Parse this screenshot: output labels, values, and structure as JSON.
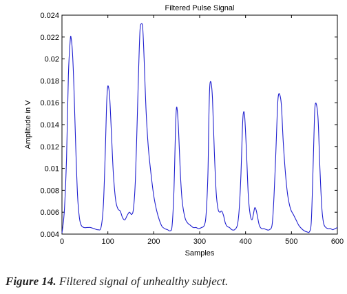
{
  "chart_data": {
    "type": "line",
    "title": "Filtered Pulse Signal",
    "xlabel": "Samples",
    "ylabel": "Amplitude in V",
    "xlim": [
      0,
      600
    ],
    "ylim": [
      0.004,
      0.024
    ],
    "xticks": [
      "0",
      "100",
      "200",
      "300",
      "400",
      "500",
      "600"
    ],
    "yticks": [
      "0.004",
      "0.006",
      "0.008",
      "0.01",
      "0.012",
      "0.014",
      "0.016",
      "0.018",
      "0.02",
      "0.022",
      "0.024"
    ],
    "grid": false,
    "line_color": "#1f1fcf",
    "series": [
      {
        "x": [
          0,
          5,
          10,
          14,
          18,
          20,
          23,
          26,
          30,
          34,
          38,
          42,
          48,
          55,
          62,
          70,
          78,
          85,
          90,
          94,
          97,
          99,
          101,
          104,
          108,
          112,
          117,
          122,
          127,
          132,
          137,
          142,
          147,
          152,
          156,
          160,
          164,
          167,
          170,
          173,
          176,
          179,
          183,
          188,
          194,
          200,
          206,
          212,
          218,
          224,
          230,
          236,
          240,
          244,
          247,
          249,
          251,
          254,
          258,
          262,
          268,
          274,
          280,
          286,
          292,
          298,
          304,
          310,
          314,
          318,
          320,
          322,
          325,
          328,
          332,
          336,
          340,
          344,
          348,
          352,
          356,
          360,
          365,
          370,
          376,
          382,
          386,
          390,
          393,
          395,
          398,
          402,
          406,
          410,
          414,
          417,
          420,
          423,
          426,
          430,
          435,
          440,
          446,
          452,
          458,
          462,
          466,
          469,
          471,
          474,
          478,
          482,
          487,
          492,
          498,
          504,
          510,
          516,
          522,
          528,
          534,
          539,
          543,
          546,
          549,
          551,
          554,
          558,
          562,
          566,
          570,
          575,
          580,
          585,
          590,
          595,
          600
        ],
        "y": [
          0.0041,
          0.006,
          0.011,
          0.0185,
          0.0217,
          0.0219,
          0.0205,
          0.0175,
          0.012,
          0.0075,
          0.0055,
          0.0048,
          0.0046,
          0.0046,
          0.0046,
          0.0045,
          0.0044,
          0.0046,
          0.0065,
          0.011,
          0.0155,
          0.0172,
          0.0175,
          0.0165,
          0.013,
          0.0095,
          0.0071,
          0.0063,
          0.0061,
          0.0055,
          0.0053,
          0.0057,
          0.006,
          0.0058,
          0.0064,
          0.009,
          0.0145,
          0.019,
          0.0226,
          0.0232,
          0.0228,
          0.02,
          0.0155,
          0.012,
          0.0095,
          0.0075,
          0.0062,
          0.0053,
          0.0047,
          0.0045,
          0.0044,
          0.0043,
          0.0048,
          0.008,
          0.013,
          0.0153,
          0.0154,
          0.0135,
          0.0095,
          0.007,
          0.0055,
          0.005,
          0.0048,
          0.0046,
          0.0046,
          0.0045,
          0.0046,
          0.0048,
          0.0058,
          0.0095,
          0.0145,
          0.0175,
          0.0178,
          0.0163,
          0.0115,
          0.0078,
          0.0063,
          0.006,
          0.0061,
          0.0057,
          0.005,
          0.0047,
          0.0046,
          0.0044,
          0.0044,
          0.0048,
          0.0062,
          0.0095,
          0.0135,
          0.015,
          0.0148,
          0.0115,
          0.0075,
          0.0058,
          0.0053,
          0.0058,
          0.0064,
          0.0062,
          0.0056,
          0.0048,
          0.0045,
          0.0045,
          0.0044,
          0.0044,
          0.0049,
          0.0075,
          0.0115,
          0.015,
          0.0165,
          0.0168,
          0.0158,
          0.0125,
          0.0095,
          0.0075,
          0.0063,
          0.0058,
          0.0053,
          0.0048,
          0.0045,
          0.0043,
          0.0042,
          0.0042,
          0.005,
          0.0085,
          0.013,
          0.0155,
          0.0159,
          0.0145,
          0.01,
          0.0065,
          0.005,
          0.0046,
          0.0045,
          0.0045,
          0.0044,
          0.0045,
          0.0046
        ]
      }
    ]
  },
  "caption": {
    "label": "Figure 14.",
    "text": "Filtered signal of unhealthy subject."
  }
}
